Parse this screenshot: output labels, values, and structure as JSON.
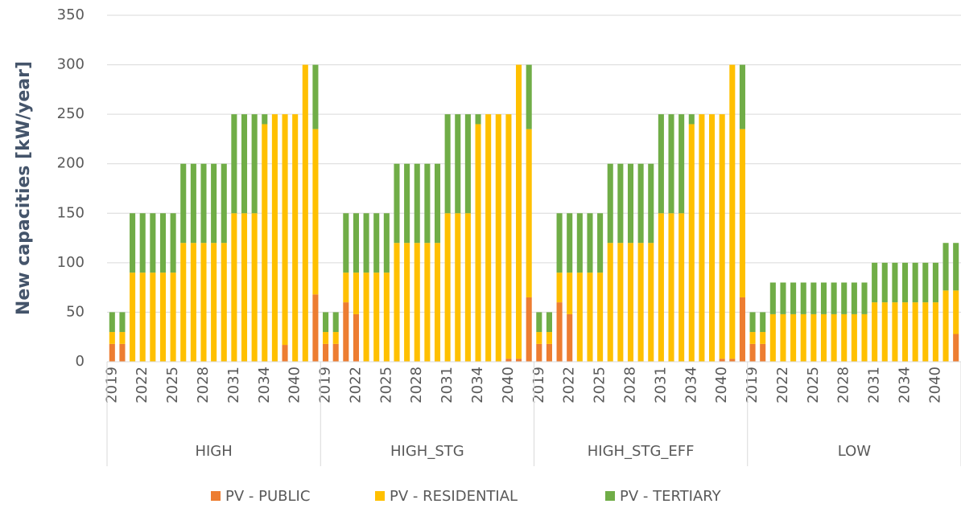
{
  "chart_data": {
    "type": "stacked_bar",
    "y_label": "New capacities [kW/year]",
    "ylim": [
      0,
      350
    ],
    "yticks": [
      0,
      50,
      100,
      150,
      200,
      250,
      300,
      350
    ],
    "grid": true,
    "legend": "bottom",
    "groups": [
      "HIGH",
      "HIGH_STG",
      "HIGH_STG_EFF",
      "LOW"
    ],
    "categories": [
      2019,
      null,
      null,
      2022,
      null,
      null,
      2025,
      null,
      null,
      2028,
      null,
      null,
      2031,
      null,
      null,
      2034,
      null,
      null,
      2040,
      null,
      null,
      2019,
      null,
      null,
      2022,
      null,
      null,
      2025,
      null,
      null,
      2028,
      null,
      null,
      2031,
      null,
      null,
      2034,
      null,
      null,
      2040,
      null,
      null,
      2019,
      null,
      null,
      2022,
      null,
      null,
      2025,
      null,
      null,
      2028,
      null,
      null,
      2031,
      null,
      null,
      2034,
      null,
      null,
      2040,
      null,
      null,
      2019,
      null,
      null,
      2022,
      null,
      null,
      2025,
      null,
      null,
      2028,
      null,
      null,
      2031,
      null,
      null,
      2034,
      null,
      null,
      2040,
      null,
      null
    ],
    "series": [
      {
        "name": "PV - PUBLIC",
        "color": "#ed7d31",
        "values": [
          18,
          18,
          0,
          0,
          0,
          0,
          0,
          0,
          0,
          0,
          0,
          0,
          0,
          0,
          0,
          0,
          0,
          17,
          0,
          0,
          68,
          18,
          18,
          60,
          48,
          0,
          0,
          0,
          0,
          0,
          0,
          0,
          0,
          0,
          0,
          0,
          0,
          0,
          0,
          3,
          3,
          65,
          18,
          18,
          60,
          48,
          0,
          0,
          0,
          0,
          0,
          0,
          0,
          0,
          0,
          0,
          0,
          0,
          0,
          0,
          3,
          3,
          65,
          18,
          18,
          0,
          0,
          0,
          0,
          0,
          0,
          0,
          0,
          0,
          0,
          0,
          0,
          0,
          0,
          0,
          0,
          0,
          0,
          28
        ]
      },
      {
        "name": "PV - RESIDENTIAL",
        "color": "#ffc000",
        "values": [
          12,
          12,
          90,
          90,
          90,
          90,
          90,
          120,
          120,
          120,
          120,
          120,
          150,
          150,
          150,
          240,
          250,
          233,
          250,
          300,
          167,
          12,
          12,
          30,
          42,
          90,
          90,
          90,
          120,
          120,
          120,
          120,
          120,
          150,
          150,
          150,
          240,
          250,
          250,
          247,
          297,
          170,
          12,
          12,
          30,
          42,
          90,
          90,
          90,
          120,
          120,
          120,
          120,
          120,
          150,
          150,
          150,
          240,
          250,
          250,
          247,
          297,
          170,
          12,
          12,
          48,
          48,
          48,
          48,
          48,
          48,
          48,
          48,
          48,
          48,
          60,
          60,
          60,
          60,
          60,
          60,
          60,
          72,
          44
        ]
      },
      {
        "name": "PV - TERTIARY",
        "color": "#70ad47",
        "values": [
          20,
          20,
          60,
          60,
          60,
          60,
          60,
          80,
          80,
          80,
          80,
          80,
          100,
          100,
          100,
          10,
          0,
          0,
          0,
          0,
          65,
          20,
          20,
          60,
          60,
          60,
          60,
          60,
          80,
          80,
          80,
          80,
          80,
          100,
          100,
          100,
          10,
          0,
          0,
          0,
          0,
          65,
          20,
          20,
          60,
          60,
          60,
          60,
          60,
          80,
          80,
          80,
          80,
          80,
          100,
          100,
          100,
          10,
          0,
          0,
          0,
          0,
          65,
          20,
          20,
          32,
          32,
          32,
          32,
          32,
          32,
          32,
          32,
          32,
          32,
          40,
          40,
          40,
          40,
          40,
          40,
          40,
          48,
          48
        ]
      }
    ]
  }
}
